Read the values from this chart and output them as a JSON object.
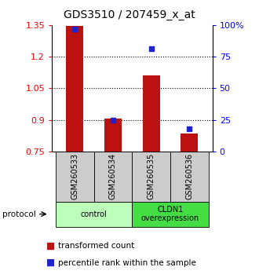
{
  "title": "GDS3510 / 207459_x_at",
  "samples": [
    "GSM260533",
    "GSM260534",
    "GSM260535",
    "GSM260536"
  ],
  "red_values": [
    1.345,
    0.905,
    1.11,
    0.835
  ],
  "blue_values_pct": [
    97,
    25,
    81,
    18
  ],
  "ylim_left": [
    0.75,
    1.35
  ],
  "ylim_right": [
    0,
    100
  ],
  "yticks_left": [
    0.75,
    0.9,
    1.05,
    1.2,
    1.35
  ],
  "yticks_right": [
    0,
    25,
    50,
    75,
    100
  ],
  "ytick_labels_right": [
    "0",
    "25",
    "50",
    "75",
    "100%"
  ],
  "bar_color": "#bb1111",
  "dot_color": "#2222cc",
  "bar_width": 0.45,
  "groups": [
    {
      "label": "control",
      "samples": [
        0,
        1
      ],
      "color": "#bbffbb"
    },
    {
      "label": "CLDN1\noverexpression",
      "samples": [
        2,
        3
      ],
      "color": "#44dd44"
    }
  ],
  "protocol_label": "protocol",
  "legend_red": "transformed count",
  "legend_blue": "percentile rank within the sample",
  "sample_box_color": "#cccccc",
  "title_fontsize": 10,
  "tick_fontsize": 8,
  "legend_fontsize": 7.5
}
